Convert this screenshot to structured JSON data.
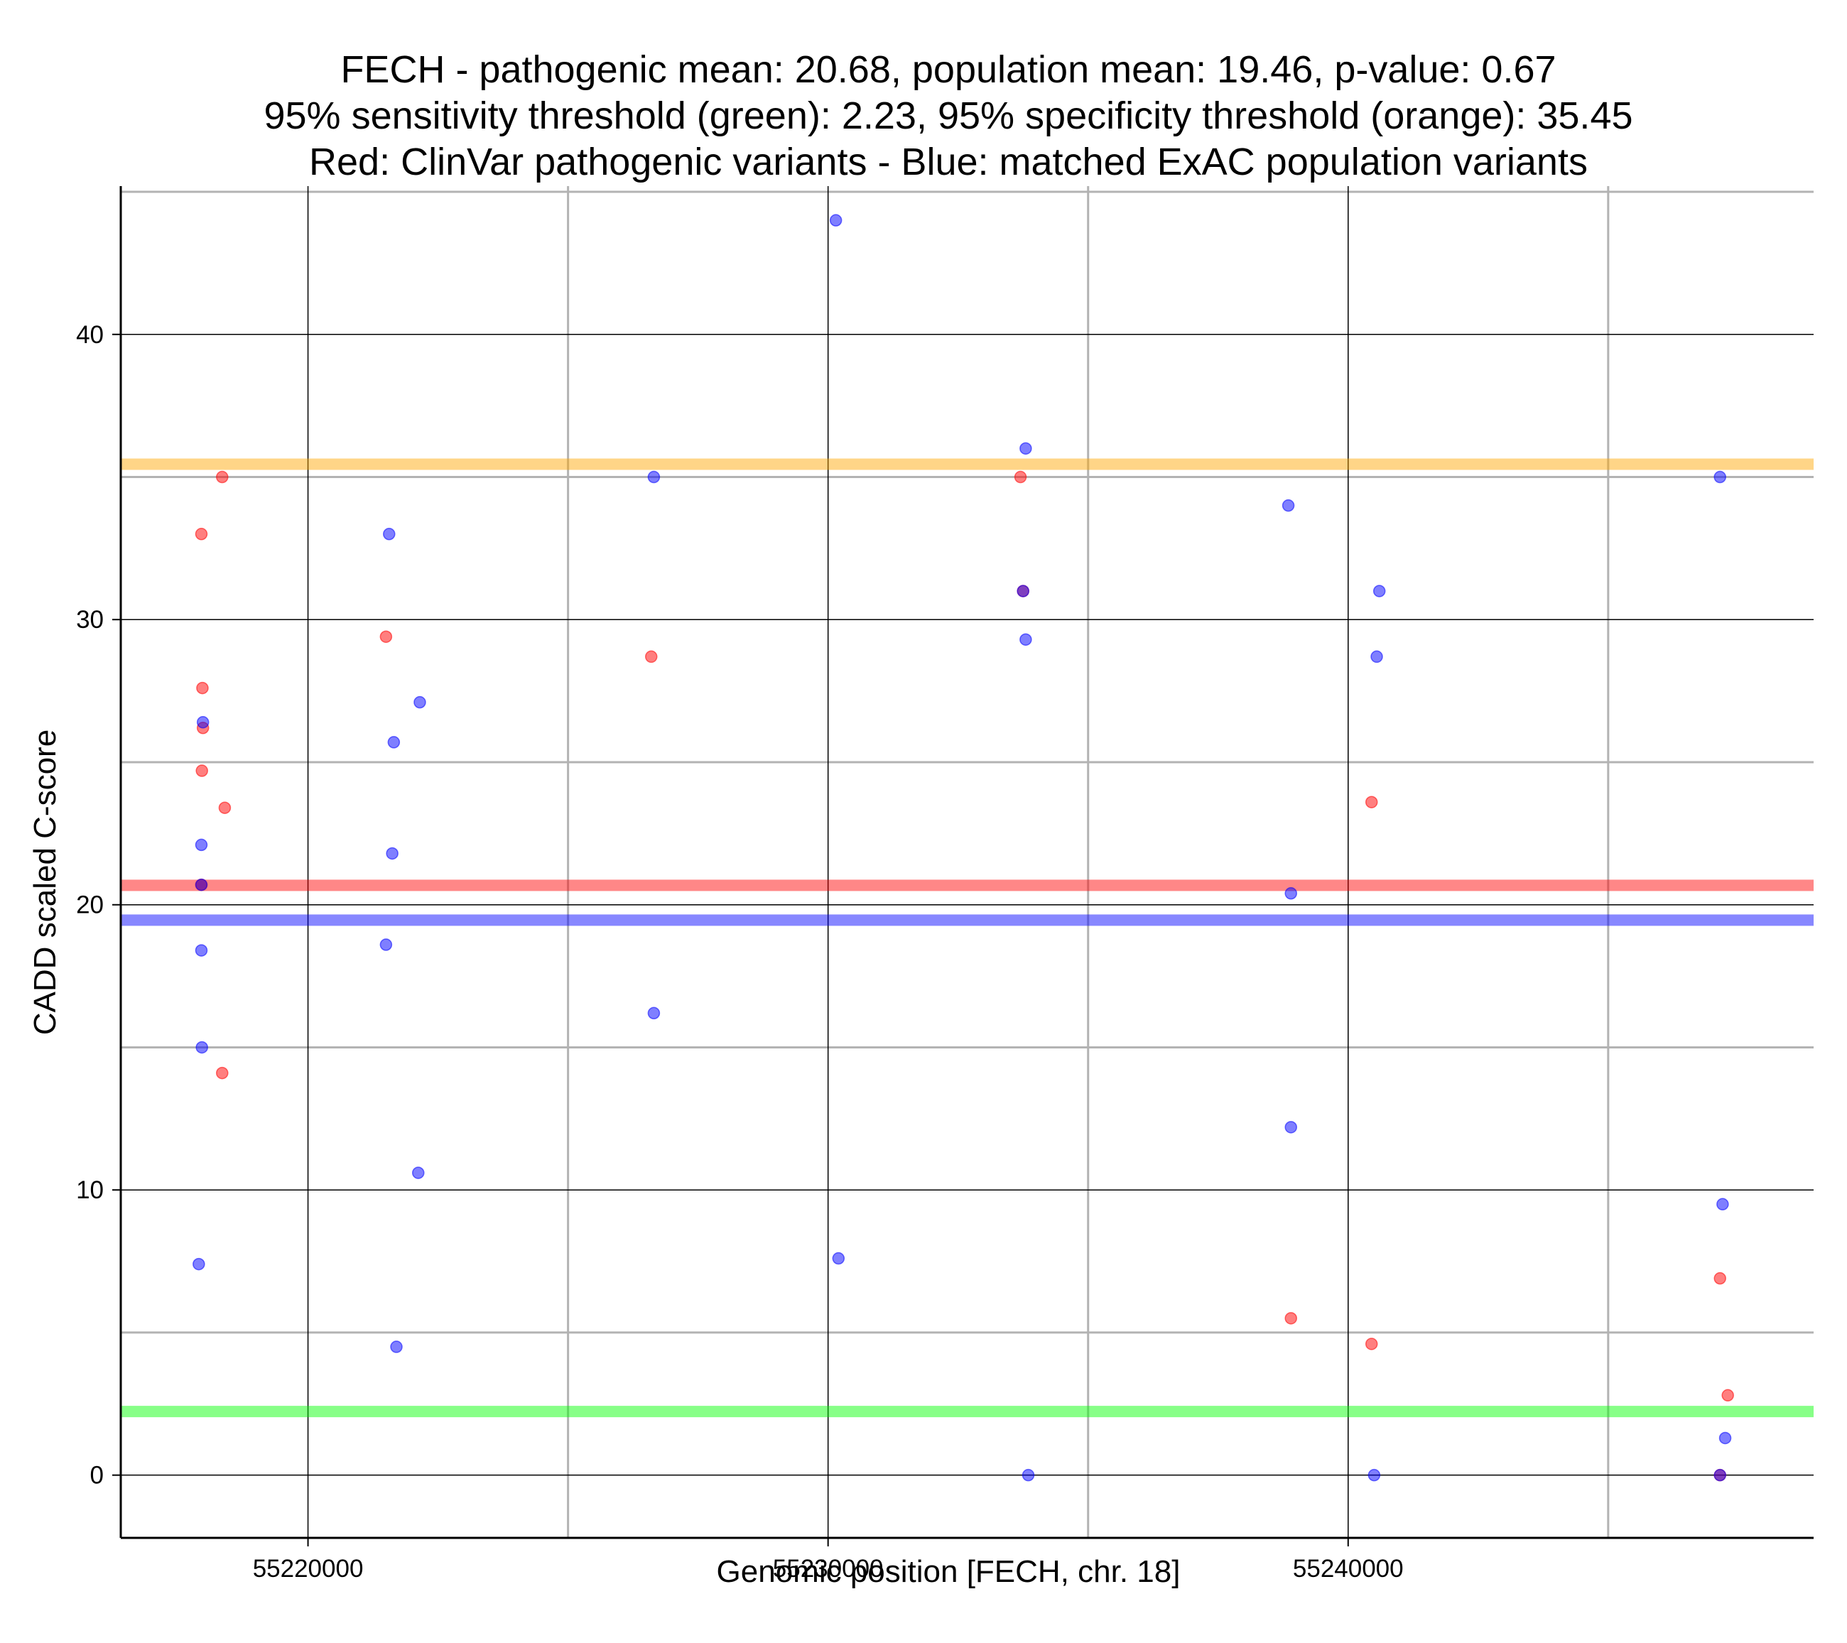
{
  "chart_data": {
    "type": "scatter",
    "title": [
      "FECH - pathogenic mean: 20.68, population mean: 19.46, p-value: 0.67",
      "95% sensitivity threshold (green): 2.23, 95% specificity threshold (orange): 35.45",
      "Red: ClinVar pathogenic variants - Blue: matched ExAC population variants"
    ],
    "xlabel": "Genomic position [FECH, chr. 18]",
    "ylabel": "CADD scaled C-score",
    "xlim": [
      55216400,
      55248950
    ],
    "ylim": [
      -2.2,
      45.2
    ],
    "xticks": [
      55220000,
      55230000,
      55240000
    ],
    "xtick_labels": [
      "55220000",
      "55230000",
      "55240000"
    ],
    "x_minor_grid": [
      55225000,
      55235000,
      55245000
    ],
    "yticks": [
      0,
      10,
      20,
      30,
      40
    ],
    "ytick_labels": [
      "0",
      "10",
      "20",
      "30",
      "40"
    ],
    "y_minor_grid": [
      5,
      15,
      25,
      35,
      45
    ],
    "grid": true,
    "hlines": [
      {
        "name": "specificity-threshold",
        "label": "95% specificity threshold (orange)",
        "value": 35.45,
        "color": "#ffa500"
      },
      {
        "name": "pathogenic-mean",
        "label": "pathogenic mean",
        "value": 20.68,
        "color": "#ff0000"
      },
      {
        "name": "population-mean",
        "label": "population mean",
        "value": 19.46,
        "color": "#0000ff"
      },
      {
        "name": "sensitivity-threshold",
        "label": "95% sensitivity threshold (green)",
        "value": 2.23,
        "color": "#00ff00"
      }
    ],
    "series": [
      {
        "name": "ClinVar pathogenic variants",
        "color": "#ff0000",
        "points": [
          {
            "x": 55218350,
            "y": 35.0
          },
          {
            "x": 55217950,
            "y": 33.0
          },
          {
            "x": 55217970,
            "y": 27.6
          },
          {
            "x": 55217980,
            "y": 26.2
          },
          {
            "x": 55217960,
            "y": 24.7
          },
          {
            "x": 55218400,
            "y": 23.4
          },
          {
            "x": 55217950,
            "y": 20.7
          },
          {
            "x": 55218350,
            "y": 14.1
          },
          {
            "x": 55221500,
            "y": 29.4
          },
          {
            "x": 55226600,
            "y": 28.7
          },
          {
            "x": 55233700,
            "y": 35.0
          },
          {
            "x": 55233750,
            "y": 31.0
          },
          {
            "x": 55238900,
            "y": 5.5
          },
          {
            "x": 55240450,
            "y": 23.6
          },
          {
            "x": 55240450,
            "y": 4.6
          },
          {
            "x": 55247150,
            "y": 6.9
          },
          {
            "x": 55247300,
            "y": 2.8
          },
          {
            "x": 55247150,
            "y": 0.0
          }
        ]
      },
      {
        "name": "matched ExAC population variants",
        "color": "#0000ff",
        "points": [
          {
            "x": 55217980,
            "y": 26.4
          },
          {
            "x": 55217950,
            "y": 22.1
          },
          {
            "x": 55217950,
            "y": 20.7
          },
          {
            "x": 55217950,
            "y": 18.4
          },
          {
            "x": 55217960,
            "y": 15.0
          },
          {
            "x": 55217900,
            "y": 7.4
          },
          {
            "x": 55221560,
            "y": 33.0
          },
          {
            "x": 55222150,
            "y": 27.1
          },
          {
            "x": 55221650,
            "y": 25.7
          },
          {
            "x": 55221620,
            "y": 21.8
          },
          {
            "x": 55221500,
            "y": 18.6
          },
          {
            "x": 55222120,
            "y": 10.6
          },
          {
            "x": 55221700,
            "y": 4.5
          },
          {
            "x": 55226650,
            "y": 35.0
          },
          {
            "x": 55226650,
            "y": 16.2
          },
          {
            "x": 55230150,
            "y": 44.0
          },
          {
            "x": 55230200,
            "y": 7.6
          },
          {
            "x": 55233800,
            "y": 36.0
          },
          {
            "x": 55233750,
            "y": 31.0
          },
          {
            "x": 55233800,
            "y": 29.3
          },
          {
            "x": 55233850,
            "y": 0.0
          },
          {
            "x": 55238850,
            "y": 34.0
          },
          {
            "x": 55238900,
            "y": 20.4
          },
          {
            "x": 55238900,
            "y": 12.2
          },
          {
            "x": 55240600,
            "y": 31.0
          },
          {
            "x": 55240550,
            "y": 28.7
          },
          {
            "x": 55240500,
            "y": 0.0
          },
          {
            "x": 55247150,
            "y": 35.0
          },
          {
            "x": 55247200,
            "y": 9.5
          },
          {
            "x": 55247250,
            "y": 1.3
          },
          {
            "x": 55247150,
            "y": 0.0
          }
        ]
      }
    ]
  }
}
